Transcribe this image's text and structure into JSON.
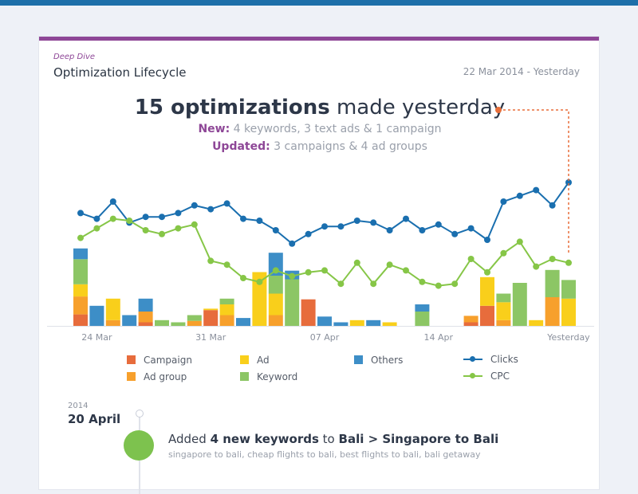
{
  "header": {
    "eyebrow": "Deep Dive",
    "title": "Optimization Lifecycle",
    "date_range": "22 Mar 2014 - Yesterday"
  },
  "summary": {
    "count": "15 optimizations",
    "rest": " made yesterday",
    "new_label": "New:",
    "new_text": " 4 keywords, 3 text ads & 1 campaign",
    "updated_label": "Updated:",
    "updated_text": " 3 campaigns & 4 ad groups"
  },
  "colors": {
    "Campaign": "#e76c3c",
    "Ad group": "#f7a02c",
    "Ad": "#f9cf1b",
    "Keyword": "#8cc665",
    "Others": "#3d8ec7",
    "Clicks": "#1a6faf",
    "CPC": "#86c647",
    "accent": "#8e4797"
  },
  "chart_data": {
    "type": "bar+line",
    "x_tick_labels": [
      "24 Mar",
      "31 Mar",
      "07 Apr",
      "14 Apr",
      "Yesterday"
    ],
    "x_tick_index": [
      1,
      8,
      15,
      22,
      30
    ],
    "bar_stack_order": [
      "Campaign",
      "Ad group",
      "Ad",
      "Keyword",
      "Others"
    ],
    "bar_series": [
      {
        "name": "Campaign",
        "values": [
          16,
          0,
          0,
          0,
          5,
          0,
          0,
          0,
          22,
          0,
          0,
          0,
          0,
          0,
          37,
          0,
          0,
          0,
          0,
          0,
          0,
          0,
          0,
          0,
          5,
          28,
          0,
          0,
          0,
          0,
          0
        ]
      },
      {
        "name": "Ad group",
        "values": [
          25,
          0,
          8,
          0,
          15,
          0,
          0,
          7,
          0,
          15,
          0,
          0,
          15,
          0,
          0,
          0,
          0,
          0,
          0,
          0,
          0,
          0,
          0,
          0,
          9,
          0,
          8,
          0,
          0,
          40,
          0
        ]
      },
      {
        "name": "Ad",
        "values": [
          17,
          0,
          30,
          0,
          0,
          0,
          0,
          0,
          2,
          15,
          0,
          75,
          30,
          0,
          0,
          0,
          0,
          8,
          0,
          5,
          0,
          0,
          0,
          0,
          0,
          40,
          25,
          0,
          8,
          0,
          38
        ]
      },
      {
        "name": "Keyword",
        "values": [
          35,
          0,
          0,
          0,
          0,
          8,
          5,
          8,
          0,
          8,
          0,
          0,
          25,
          65,
          0,
          0,
          0,
          0,
          0,
          0,
          0,
          20,
          0,
          0,
          0,
          0,
          12,
          60,
          0,
          38,
          26
        ]
      },
      {
        "name": "Others",
        "values": [
          15,
          28,
          0,
          15,
          18,
          0,
          0,
          0,
          0,
          0,
          11,
          0,
          32,
          12,
          0,
          13,
          5,
          0,
          8,
          0,
          0,
          10,
          0,
          0,
          0,
          0,
          0,
          0,
          0,
          0,
          0
        ]
      }
    ],
    "line_series": [
      {
        "name": "Clicks",
        "values": [
          64,
          61,
          70,
          59,
          62,
          62,
          64,
          68,
          66,
          69,
          61,
          60,
          55,
          48,
          53,
          57,
          57,
          60,
          59,
          55,
          61,
          55,
          58,
          53,
          56,
          50,
          70,
          73,
          76,
          68,
          80
        ]
      },
      {
        "name": "CPC",
        "values": [
          51,
          56,
          61,
          60,
          55,
          53,
          56,
          58,
          39,
          37,
          30,
          28,
          34,
          31,
          33,
          34,
          27,
          38,
          27,
          37,
          34,
          28,
          26,
          27,
          40,
          33,
          43,
          49,
          36,
          40,
          38
        ]
      }
    ],
    "legend": [
      "Campaign",
      "Ad group",
      "Ad",
      "Keyword",
      "Others",
      "Clicks",
      "CPC"
    ],
    "grid": false
  },
  "timeline": {
    "year": "2014",
    "date": "20 April",
    "event_prefix": "Added ",
    "event_count": "4 new keywords",
    "event_mid": " to ",
    "event_target": "Bali > Singapore to Bali",
    "event_keywords": "singapore to bali, cheap flights to bali, best flights to bali, bali getaway"
  }
}
